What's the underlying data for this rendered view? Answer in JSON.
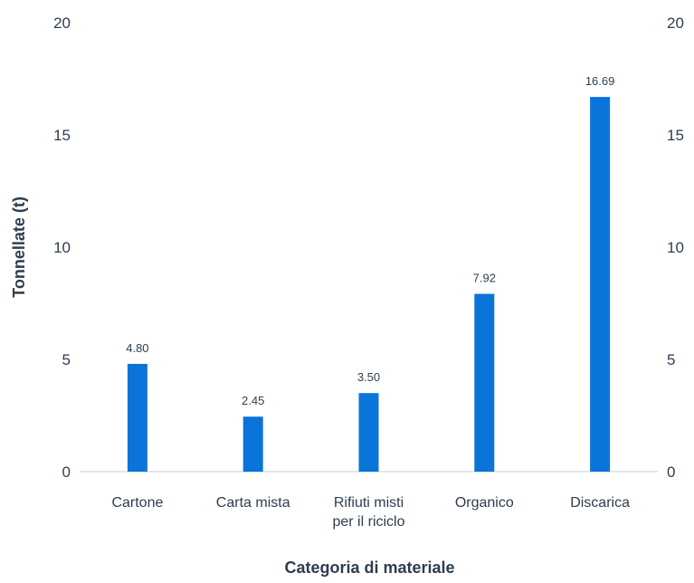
{
  "chart_data": {
    "type": "bar",
    "title": "",
    "xlabel": "Categoria di materiale",
    "ylabel": "Tonnellate (t)",
    "categories": [
      [
        "Cartone"
      ],
      [
        "Carta mista"
      ],
      [
        "Rifiuti misti",
        "per il riciclo"
      ],
      [
        "Organico"
      ],
      [
        "Discarica"
      ]
    ],
    "values": [
      4.8,
      2.45,
      3.5,
      7.92,
      16.69
    ],
    "value_labels": [
      "4.80",
      "2.45",
      "3.50",
      "7.92",
      "16.69"
    ],
    "ylim": [
      0,
      20
    ],
    "yticks": [
      0,
      5,
      10,
      15,
      20
    ],
    "secondary_y_axis": true,
    "grid": false,
    "legend": "none",
    "bar_color": "#0a74da"
  }
}
